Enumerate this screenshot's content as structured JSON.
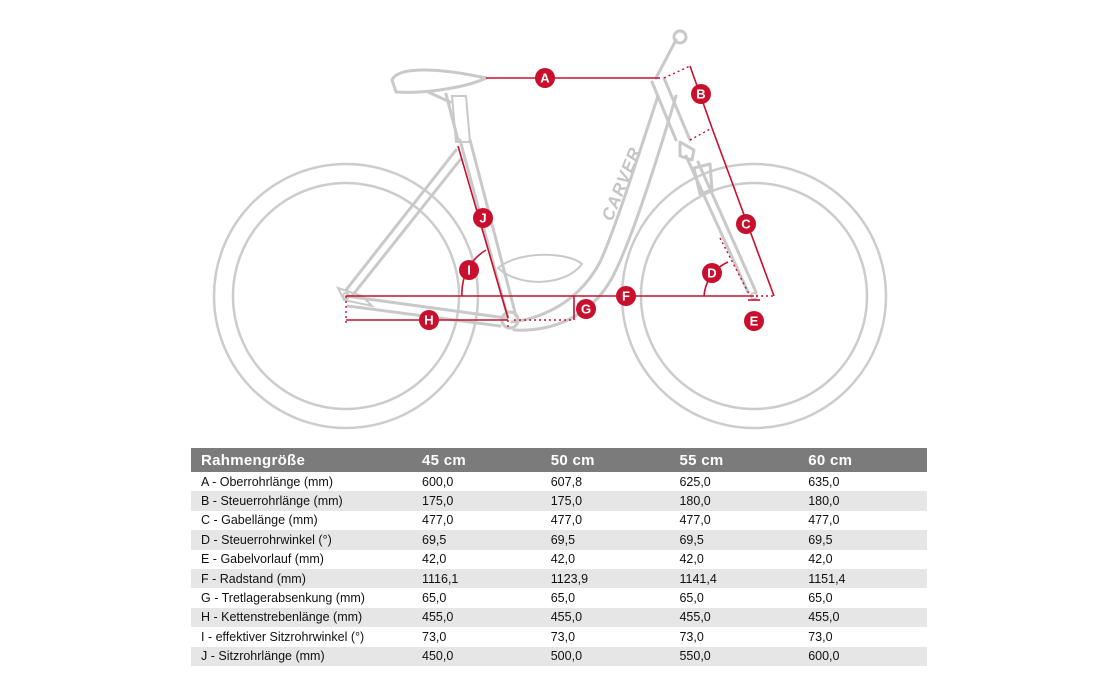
{
  "diagram": {
    "brand_text": "CARVER",
    "accent_color": "#c8102e",
    "frame_color": "#c9c9c9",
    "markers": [
      "A",
      "B",
      "C",
      "D",
      "E",
      "F",
      "G",
      "H",
      "I",
      "J"
    ]
  },
  "table": {
    "header_color": "#7b7b7b",
    "headers": [
      "Rahmengröße",
      "45 cm",
      "50 cm",
      "55 cm",
      "60 cm"
    ],
    "rows": [
      {
        "label": "A  - Oberrohrlänge (mm)",
        "values": [
          "600,0",
          "607,8",
          "625,0",
          "635,0"
        ]
      },
      {
        "label": "B  - Steuerrohrlänge (mm)",
        "values": [
          "175,0",
          "175,0",
          "180,0",
          "180,0"
        ]
      },
      {
        "label": "C  - Gabellänge (mm)",
        "values": [
          "477,0",
          "477,0",
          "477,0",
          "477,0"
        ]
      },
      {
        "label": "D  - Steuerrohrwinkel (°)",
        "values": [
          "69,5",
          "69,5",
          "69,5",
          "69,5"
        ]
      },
      {
        "label": "E  - Gabelvorlauf (mm)",
        "values": [
          "42,0",
          "42,0",
          "42,0",
          "42,0"
        ]
      },
      {
        "label": "F  - Radstand (mm)",
        "values": [
          "1116,1",
          "1123,9",
          "1141,4",
          "1151,4"
        ]
      },
      {
        "label": "G  - Tretlagerabsenkung (mm)",
        "values": [
          "65,0",
          "65,0",
          "65,0",
          "65,0"
        ]
      },
      {
        "label": "H  - Kettenstrebenlänge (mm)",
        "values": [
          "455,0",
          "455,0",
          "455,0",
          "455,0"
        ]
      },
      {
        "label": "I   - effektiver Sitzrohrwinkel (°)",
        "values": [
          "73,0",
          "73,0",
          "73,0",
          "73,0"
        ]
      },
      {
        "label": "J  - Sitzrohrlänge (mm)",
        "values": [
          "450,0",
          "500,0",
          "550,0",
          "600,0"
        ]
      }
    ]
  }
}
